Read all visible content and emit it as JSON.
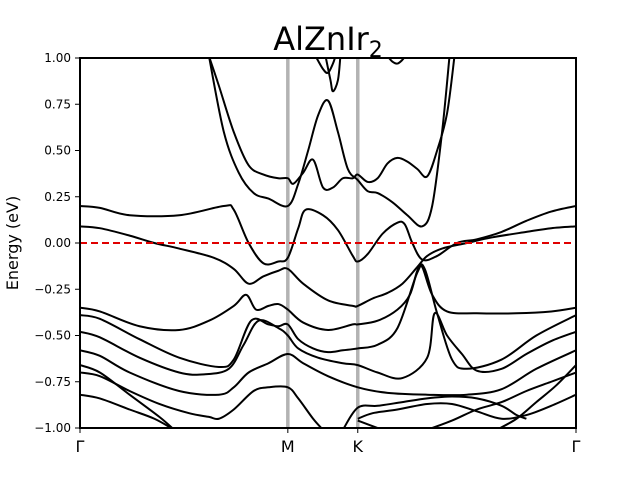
{
  "chart_data": {
    "type": "line",
    "title": "AlZnIr",
    "title_subscript": "2",
    "xlabel": "",
    "ylabel": "Energy (eV)",
    "xlim": [
      0,
      1
    ],
    "ylim": [
      -1.0,
      1.0
    ],
    "yticks": [
      1.0,
      0.75,
      0.5,
      0.25,
      0.0,
      -0.25,
      -0.5,
      -0.75,
      -1.0
    ],
    "ytick_labels": [
      "1.00",
      "0.75",
      "0.50",
      "0.25",
      "0.00",
      "−0.25",
      "−0.50",
      "−0.75",
      "−1.00"
    ],
    "kpoints": [
      {
        "label": "Γ",
        "x": 0.0
      },
      {
        "label": "M",
        "x": 0.419
      },
      {
        "label": "K",
        "x": 0.56
      },
      {
        "label": "Γ",
        "x": 1.0
      }
    ],
    "fermi_level": 0.0,
    "colors": {
      "bands": "#000000",
      "fermi": "#e00000",
      "kline": "#b3b3b3"
    },
    "series": [
      {
        "values": [
          [
            0.0,
            0.2
          ],
          [
            0.04,
            0.19
          ],
          [
            0.1,
            0.15
          ],
          [
            0.2,
            0.15
          ],
          [
            0.29,
            0.2
          ],
          [
            0.31,
            0.18
          ],
          [
            0.34,
            0.0
          ],
          [
            0.37,
            -0.11
          ],
          [
            0.4,
            -0.1
          ],
          [
            0.419,
            -0.08
          ],
          [
            0.44,
            0.08
          ],
          [
            0.455,
            0.18
          ],
          [
            0.49,
            0.15
          ],
          [
            0.52,
            0.07
          ],
          [
            0.55,
            -0.07
          ],
          [
            0.56,
            -0.1
          ],
          [
            0.58,
            -0.06
          ],
          [
            0.61,
            0.05
          ],
          [
            0.64,
            0.11
          ],
          [
            0.655,
            0.1
          ],
          [
            0.67,
            0.0
          ],
          [
            0.69,
            -0.09
          ],
          [
            0.72,
            -0.07
          ],
          [
            0.76,
            0.0
          ],
          [
            0.8,
            0.02
          ],
          [
            0.85,
            0.06
          ],
          [
            0.9,
            0.12
          ],
          [
            0.95,
            0.17
          ],
          [
            1.0,
            0.2
          ]
        ]
      },
      {
        "values": [
          [
            0.0,
            0.09
          ],
          [
            0.04,
            0.08
          ],
          [
            0.1,
            0.04
          ],
          [
            0.15,
            0.0
          ],
          [
            0.2,
            -0.03
          ],
          [
            0.27,
            -0.08
          ],
          [
            0.31,
            -0.14
          ],
          [
            0.34,
            -0.22
          ],
          [
            0.37,
            -0.18
          ],
          [
            0.4,
            -0.15
          ],
          [
            0.419,
            -0.14
          ],
          [
            0.45,
            -0.22
          ],
          [
            0.5,
            -0.31
          ],
          [
            0.55,
            -0.34
          ],
          [
            0.56,
            -0.34
          ],
          [
            0.59,
            -0.3
          ],
          [
            0.62,
            -0.27
          ],
          [
            0.65,
            -0.22
          ],
          [
            0.68,
            -0.13
          ],
          [
            0.7,
            -0.07
          ],
          [
            0.73,
            -0.03
          ],
          [
            0.78,
            0.0
          ],
          [
            0.83,
            0.03
          ],
          [
            0.9,
            0.06
          ],
          [
            0.95,
            0.08
          ],
          [
            1.0,
            0.09
          ]
        ]
      },
      {
        "values": [
          [
            0.0,
            -0.35
          ],
          [
            0.04,
            -0.37
          ],
          [
            0.12,
            -0.45
          ],
          [
            0.2,
            -0.47
          ],
          [
            0.26,
            -0.42
          ],
          [
            0.31,
            -0.34
          ],
          [
            0.335,
            -0.28
          ],
          [
            0.355,
            -0.36
          ],
          [
            0.38,
            -0.34
          ],
          [
            0.4,
            -0.33
          ],
          [
            0.419,
            -0.36
          ],
          [
            0.45,
            -0.43
          ],
          [
            0.5,
            -0.47
          ],
          [
            0.55,
            -0.44
          ],
          [
            0.56,
            -0.44
          ],
          [
            0.6,
            -0.42
          ],
          [
            0.64,
            -0.36
          ],
          [
            0.665,
            -0.28
          ],
          [
            0.68,
            -0.15
          ],
          [
            0.69,
            -0.13
          ],
          [
            0.71,
            -0.28
          ],
          [
            0.74,
            -0.37
          ],
          [
            0.8,
            -0.38
          ],
          [
            0.88,
            -0.38
          ],
          [
            0.95,
            -0.37
          ],
          [
            1.0,
            -0.35
          ]
        ]
      },
      {
        "values": [
          [
            0.0,
            -0.39
          ],
          [
            0.04,
            -0.41
          ],
          [
            0.12,
            -0.52
          ],
          [
            0.2,
            -0.62
          ],
          [
            0.28,
            -0.67
          ],
          [
            0.31,
            -0.63
          ],
          [
            0.345,
            -0.42
          ],
          [
            0.38,
            -0.44
          ],
          [
            0.4,
            -0.45
          ],
          [
            0.419,
            -0.44
          ],
          [
            0.44,
            -0.52
          ],
          [
            0.47,
            -0.57
          ],
          [
            0.5,
            -0.59
          ],
          [
            0.53,
            -0.58
          ],
          [
            0.56,
            -0.57
          ],
          [
            0.6,
            -0.55
          ],
          [
            0.64,
            -0.46
          ],
          [
            0.68,
            -0.16
          ],
          [
            0.695,
            -0.14
          ],
          [
            0.72,
            -0.38
          ],
          [
            0.75,
            -0.63
          ],
          [
            0.78,
            -0.68
          ],
          [
            0.85,
            -0.63
          ],
          [
            0.92,
            -0.5
          ],
          [
            1.0,
            -0.39
          ]
        ]
      },
      {
        "values": [
          [
            0.0,
            -0.48
          ],
          [
            0.04,
            -0.51
          ],
          [
            0.12,
            -0.62
          ],
          [
            0.2,
            -0.7
          ],
          [
            0.25,
            -0.71
          ],
          [
            0.3,
            -0.68
          ],
          [
            0.33,
            -0.55
          ],
          [
            0.36,
            -0.42
          ],
          [
            0.4,
            -0.46
          ],
          [
            0.419,
            -0.5
          ],
          [
            0.44,
            -0.57
          ],
          [
            0.48,
            -0.62
          ],
          [
            0.53,
            -0.65
          ],
          [
            0.56,
            -0.66
          ],
          [
            0.6,
            -0.7
          ],
          [
            0.65,
            -0.73
          ],
          [
            0.7,
            -0.62
          ],
          [
            0.715,
            -0.38
          ],
          [
            0.74,
            -0.5
          ],
          [
            0.77,
            -0.6
          ],
          [
            0.8,
            -0.69
          ],
          [
            0.85,
            -0.68
          ],
          [
            0.9,
            -0.6
          ],
          [
            0.95,
            -0.53
          ],
          [
            1.0,
            -0.48
          ]
        ]
      },
      {
        "values": [
          [
            0.0,
            -0.58
          ],
          [
            0.04,
            -0.61
          ],
          [
            0.1,
            -0.7
          ],
          [
            0.2,
            -0.8
          ],
          [
            0.28,
            -0.82
          ],
          [
            0.31,
            -0.78
          ],
          [
            0.34,
            -0.7
          ],
          [
            0.38,
            -0.65
          ],
          [
            0.419,
            -0.6
          ],
          [
            0.45,
            -0.65
          ],
          [
            0.5,
            -0.72
          ],
          [
            0.56,
            -0.78
          ],
          [
            0.62,
            -0.81
          ],
          [
            0.7,
            -0.82
          ],
          [
            0.78,
            -0.82
          ],
          [
            0.85,
            -0.79
          ],
          [
            0.92,
            -0.68
          ],
          [
            1.0,
            -0.58
          ]
        ]
      },
      {
        "values": [
          [
            0.0,
            -0.7
          ],
          [
            0.04,
            -0.72
          ],
          [
            0.1,
            -0.8
          ],
          [
            0.16,
            -0.87
          ],
          [
            0.22,
            -0.92
          ],
          [
            0.26,
            -0.94
          ],
          [
            0.28,
            -0.95
          ],
          [
            0.31,
            -0.9
          ],
          [
            0.35,
            -0.8
          ],
          [
            0.38,
            -0.78
          ],
          [
            0.419,
            -0.78
          ],
          [
            0.44,
            -0.84
          ],
          [
            0.47,
            -0.95
          ],
          [
            0.49,
            -1.01
          ]
        ]
      },
      {
        "values": [
          [
            0.0,
            -0.82
          ],
          [
            0.04,
            -0.84
          ],
          [
            0.1,
            -0.9
          ],
          [
            0.15,
            -0.95
          ],
          [
            0.19,
            -1.01
          ]
        ]
      },
      {
        "values": [
          [
            0.0,
            -0.66
          ],
          [
            0.04,
            -0.7
          ],
          [
            0.1,
            -0.82
          ],
          [
            0.16,
            -0.94
          ],
          [
            0.19,
            -1.01
          ]
        ]
      },
      {
        "values": [
          [
            0.53,
            -1.01
          ],
          [
            0.56,
            -0.89
          ],
          [
            0.6,
            -0.88
          ],
          [
            0.65,
            -0.86
          ],
          [
            0.7,
            -0.84
          ],
          [
            0.75,
            -0.83
          ],
          [
            0.8,
            -0.84
          ],
          [
            0.85,
            -0.88
          ],
          [
            0.88,
            -0.93
          ],
          [
            0.9,
            -0.95
          ]
        ]
      },
      {
        "values": [
          [
            0.56,
            -0.95
          ],
          [
            0.59,
            -0.92
          ],
          [
            0.64,
            -0.9
          ],
          [
            0.7,
            -0.87
          ],
          [
            0.75,
            -0.87
          ],
          [
            0.8,
            -0.91
          ],
          [
            0.85,
            -0.95
          ],
          [
            0.9,
            -0.93
          ],
          [
            0.95,
            -0.88
          ],
          [
            1.0,
            -0.82
          ]
        ]
      },
      {
        "values": [
          [
            0.56,
            -0.96
          ],
          [
            0.59,
            -0.99
          ],
          [
            0.61,
            -1.01
          ]
        ]
      },
      {
        "values": [
          [
            0.7,
            -1.01
          ],
          [
            0.75,
            -0.96
          ],
          [
            0.8,
            -0.9
          ],
          [
            0.85,
            -0.86
          ],
          [
            0.9,
            -0.8
          ],
          [
            0.95,
            -0.75
          ],
          [
            1.0,
            -0.7
          ]
        ]
      },
      {
        "values": [
          [
            0.84,
            -1.01
          ],
          [
            0.88,
            -0.95
          ],
          [
            0.92,
            -0.86
          ],
          [
            0.96,
            -0.77
          ],
          [
            1.0,
            -0.66
          ]
        ]
      },
      {
        "values": [
          [
            0.26,
            1.01
          ],
          [
            0.28,
            0.85
          ],
          [
            0.31,
            0.6
          ],
          [
            0.34,
            0.42
          ],
          [
            0.37,
            0.37
          ],
          [
            0.4,
            0.35
          ],
          [
            0.419,
            0.35
          ],
          [
            0.43,
            0.32
          ],
          [
            0.45,
            0.38
          ],
          [
            0.47,
            0.45
          ],
          [
            0.49,
            0.3
          ],
          [
            0.51,
            0.3
          ],
          [
            0.53,
            0.35
          ],
          [
            0.55,
            0.35
          ],
          [
            0.56,
            0.37
          ],
          [
            0.58,
            0.33
          ],
          [
            0.6,
            0.35
          ],
          [
            0.62,
            0.43
          ],
          [
            0.64,
            0.46
          ],
          [
            0.66,
            0.44
          ],
          [
            0.68,
            0.4
          ],
          [
            0.7,
            0.36
          ],
          [
            0.72,
            0.5
          ],
          [
            0.74,
            0.7
          ],
          [
            0.755,
            1.01
          ]
        ]
      },
      {
        "values": [
          [
            0.26,
            1.01
          ],
          [
            0.29,
            0.6
          ],
          [
            0.32,
            0.38
          ],
          [
            0.35,
            0.27
          ],
          [
            0.38,
            0.24
          ],
          [
            0.419,
            0.2
          ],
          [
            0.44,
            0.32
          ],
          [
            0.46,
            0.5
          ],
          [
            0.48,
            0.69
          ],
          [
            0.5,
            0.77
          ],
          [
            0.52,
            0.6
          ],
          [
            0.54,
            0.4
          ],
          [
            0.56,
            0.34
          ],
          [
            0.58,
            0.28
          ],
          [
            0.6,
            0.27
          ],
          [
            0.63,
            0.22
          ],
          [
            0.66,
            0.15
          ],
          [
            0.69,
            0.09
          ],
          [
            0.71,
            0.2
          ],
          [
            0.73,
            0.6
          ],
          [
            0.745,
            1.01
          ]
        ]
      },
      {
        "values": [
          [
            0.475,
            1.01
          ],
          [
            0.49,
            0.94
          ],
          [
            0.5,
            0.92
          ],
          [
            0.51,
            0.97
          ],
          [
            0.515,
            1.01
          ]
        ]
      },
      {
        "values": [
          [
            0.495,
            1.01
          ],
          [
            0.505,
            0.88
          ],
          [
            0.51,
            0.82
          ],
          [
            0.52,
            0.88
          ],
          [
            0.525,
            1.01
          ]
        ]
      },
      {
        "values": [
          [
            0.62,
            1.01
          ],
          [
            0.63,
            0.98
          ],
          [
            0.64,
            0.97
          ],
          [
            0.65,
            0.99
          ],
          [
            0.655,
            1.01
          ]
        ]
      }
    ]
  }
}
